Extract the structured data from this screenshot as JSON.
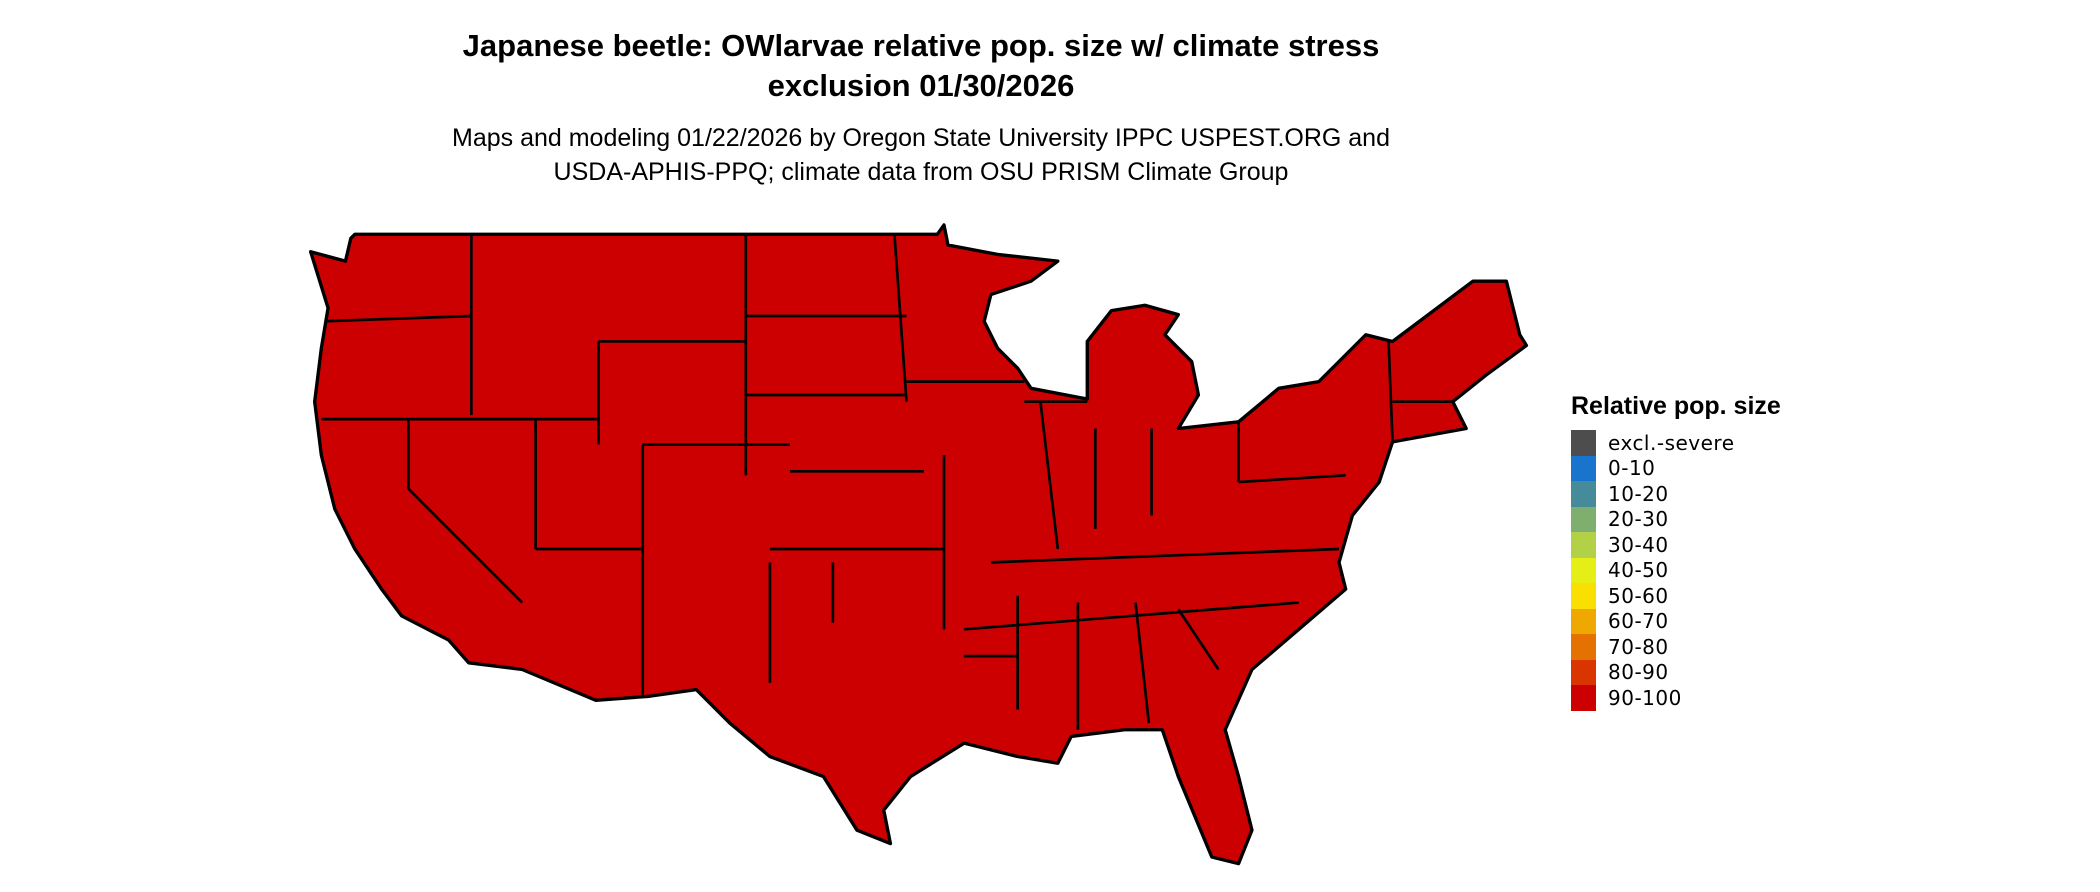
{
  "title_line1": "Japanese beetle: OWlarvae relative pop. size w/ climate stress",
  "title_line2": "exclusion 01/30/2026",
  "subtitle_line1": "Maps and modeling 01/22/2026 by Oregon State University IPPC USPEST.ORG and",
  "subtitle_line2": "USDA-APHIS-PPQ; climate data from OSU PRISM Climate Group",
  "map": {
    "region": "contiguous United States",
    "fill_color": "#CC0000",
    "border_color": "#000000",
    "category_shown": "90-100"
  },
  "legend": {
    "title": "Relative pop. size",
    "items": [
      {
        "label": "excl.-severe",
        "color": "#4D4D4D"
      },
      {
        "label": "0-10",
        "color": "#1874CD"
      },
      {
        "label": "10-20",
        "color": "#458B9A"
      },
      {
        "label": "20-30",
        "color": "#7FAF6F"
      },
      {
        "label": "30-40",
        "color": "#B2D147"
      },
      {
        "label": "40-50",
        "color": "#E5EE17"
      },
      {
        "label": "50-60",
        "color": "#FAE000"
      },
      {
        "label": "60-70",
        "color": "#EFA800"
      },
      {
        "label": "70-80",
        "color": "#E57200"
      },
      {
        "label": "80-90",
        "color": "#DA3500"
      },
      {
        "label": "90-100",
        "color": "#CC0000"
      }
    ]
  }
}
